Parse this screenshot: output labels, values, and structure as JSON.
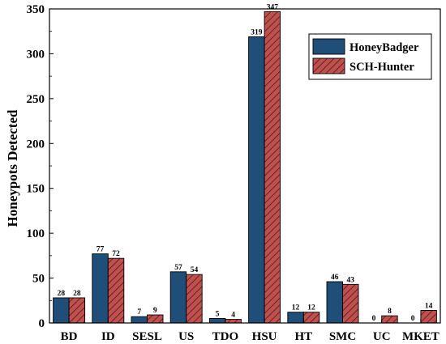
{
  "chart_data": {
    "type": "bar",
    "title": "",
    "xlabel": "",
    "ylabel": "Honeypots Detected",
    "ylim": [
      0,
      350
    ],
    "yticks": [
      0,
      50,
      100,
      150,
      200,
      250,
      300,
      350
    ],
    "grid": false,
    "legend_position": "top-right",
    "categories": [
      "BD",
      "ID",
      "SESL",
      "US",
      "TDO",
      "HSU",
      "HT",
      "SMC",
      "UC",
      "MKET"
    ],
    "series": [
      {
        "name": "HoneyBadger",
        "color": "#1f4e79",
        "pattern": "solid",
        "values": [
          28,
          77,
          7,
          57,
          5,
          319,
          12,
          46,
          0,
          0
        ]
      },
      {
        "name": "SCH-Hunter",
        "color": "#c0504d",
        "pattern": "hatched",
        "values": [
          28,
          72,
          9,
          54,
          4,
          347,
          12,
          43,
          8,
          14
        ]
      }
    ]
  }
}
